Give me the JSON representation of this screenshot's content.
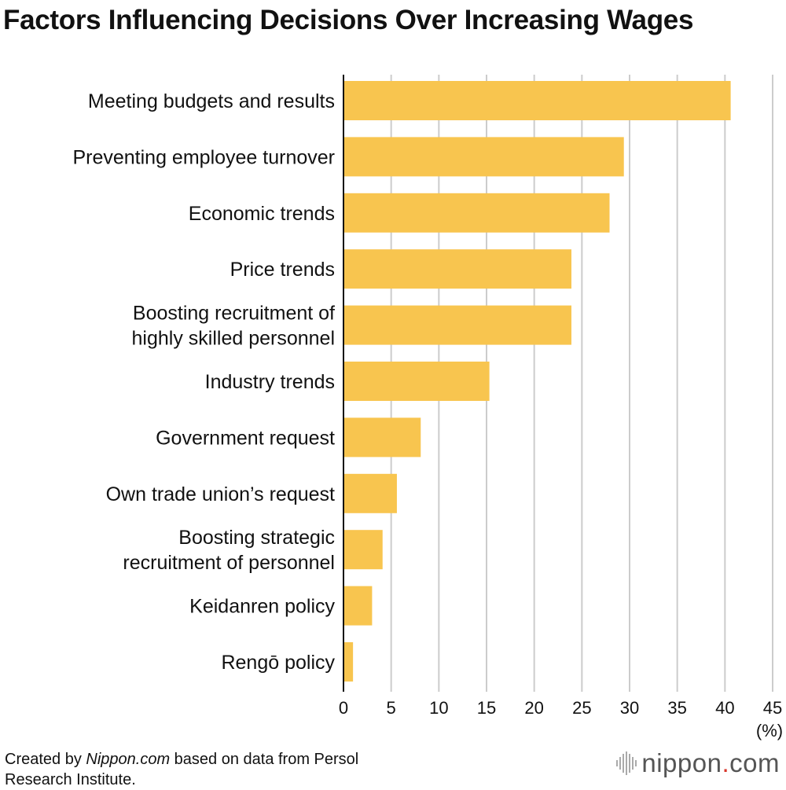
{
  "chart_data": {
    "type": "bar",
    "orientation": "horizontal",
    "title": "Factors Influencing Decisions Over Increasing Wages",
    "unit_label": "(%)",
    "categories": [
      [
        "Meeting budgets and results"
      ],
      [
        "Preventing employee turnover"
      ],
      [
        "Economic trends"
      ],
      [
        "Price trends"
      ],
      [
        "Boosting recruitment of",
        "highly skilled personnel"
      ],
      [
        "Industry trends"
      ],
      [
        "Government request"
      ],
      [
        "Own trade union’s request"
      ],
      [
        "Boosting strategic",
        "recruitment of personnel"
      ],
      [
        "Keidanren policy"
      ],
      [
        "Rengō policy"
      ]
    ],
    "values": [
      40.6,
      29.4,
      27.9,
      23.9,
      23.9,
      15.3,
      8.1,
      5.6,
      4.1,
      3.0,
      1.0
    ],
    "xlim": [
      0,
      45
    ],
    "xticks": [
      0,
      5,
      10,
      15,
      20,
      25,
      30,
      35,
      40,
      45
    ],
    "grid": true,
    "bar_color": "#f8c54f",
    "grid_color": "#cccccc"
  },
  "source": {
    "prefix": "Created by ",
    "site": "Nippon.com",
    "line1_rest": " based on data from Persol",
    "line2": "Research Institute."
  },
  "logo": {
    "name": "nippon",
    "dot": ".",
    "suffix": "com",
    "accent_color": "#d8352a"
  }
}
